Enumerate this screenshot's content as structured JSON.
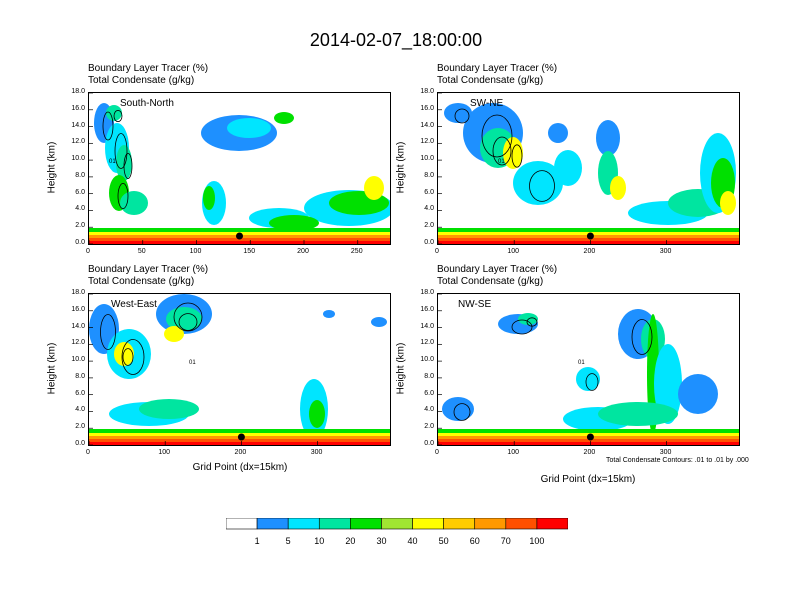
{
  "title": "2014-02-07_18:00:00",
  "label_line1": "Boundary Layer Tracer   (%)",
  "label_line2": "Total Condensate   (g/kg)",
  "ylabel": "Height (km)",
  "xlabel": "Grid Point (dx=15km)",
  "contour_note": "Total Condensate Contours: .01 to .01 by .000",
  "contour_tag": "01",
  "colors": [
    "#ffffff",
    "#1e90ff",
    "#00e5ff",
    "#00e5a0",
    "#00e000",
    "#a0e632",
    "#ffff00",
    "#ffcc00",
    "#ff9900",
    "#ff5000",
    "#ff0000"
  ],
  "colorbar_ticks": [
    "1",
    "5",
    "10",
    "20",
    "30",
    "40",
    "50",
    "60",
    "70",
    "100"
  ],
  "chart_data": [
    {
      "type": "heatmap",
      "name": "South-North",
      "ylim": [
        0,
        18
      ],
      "xlim": [
        0,
        280
      ],
      "y_ticks": [
        "0.0",
        "2.0",
        "4.0",
        "6.0",
        "8.0",
        "10.0",
        "12.0",
        "14.0",
        "16.0",
        "18.0"
      ],
      "x_ticks": [
        0,
        50,
        100,
        150,
        200,
        250
      ],
      "x_tick_labels": [
        "0",
        "50",
        "100",
        "150",
        "200",
        "250"
      ],
      "marker_x": 140
    },
    {
      "type": "heatmap",
      "name": "SW-NE",
      "ylim": [
        0,
        18
      ],
      "xlim": [
        0,
        395
      ],
      "y_ticks": [
        "0.0",
        "2.0",
        "4.0",
        "6.0",
        "8.0",
        "10.0",
        "12.0",
        "14.0",
        "16.0",
        "18.0"
      ],
      "x_ticks": [
        0,
        100,
        200,
        300
      ],
      "x_tick_labels": [
        "0",
        "100",
        "200",
        "300"
      ],
      "marker_x": 200
    },
    {
      "type": "heatmap",
      "name": "West-East",
      "ylim": [
        0,
        18
      ],
      "xlim": [
        0,
        395
      ],
      "y_ticks": [
        "0.0",
        "2.0",
        "4.0",
        "6.0",
        "8.0",
        "10.0",
        "12.0",
        "14.0",
        "16.0",
        "18.0"
      ],
      "x_ticks": [
        0,
        100,
        200,
        300
      ],
      "x_tick_labels": [
        "0",
        "100",
        "200",
        "300"
      ],
      "marker_x": 200
    },
    {
      "type": "heatmap",
      "name": "NW-SE",
      "ylim": [
        0,
        18
      ],
      "xlim": [
        0,
        395
      ],
      "y_ticks": [
        "0.0",
        "2.0",
        "4.0",
        "6.0",
        "8.0",
        "10.0",
        "12.0",
        "14.0",
        "16.0",
        "18.0"
      ],
      "x_ticks": [
        0,
        100,
        200,
        300
      ],
      "x_tick_labels": [
        "0",
        "100",
        "200",
        "300"
      ],
      "marker_x": 200
    }
  ]
}
